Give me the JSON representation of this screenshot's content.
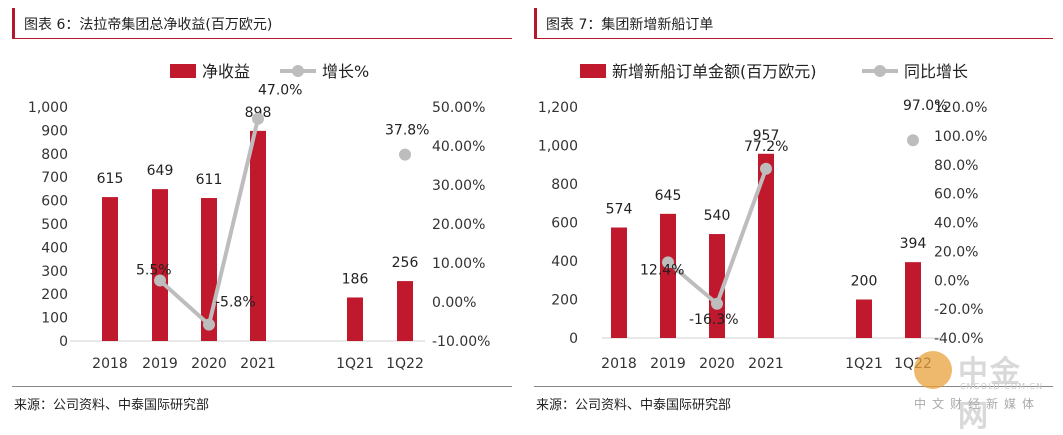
{
  "charts": [
    {
      "title": "图表 6：法拉帝集团总净收益(百万欧元)",
      "source": "来源：公司资料、中泰国际研究部",
      "legend": {
        "bar_label": "净收益",
        "line_label": "增长%"
      },
      "left_axis_ticks": [
        "0",
        "100",
        "200",
        "300",
        "400",
        "500",
        "600",
        "700",
        "800",
        "900",
        "1,000"
      ],
      "right_axis_ticks": [
        "-10.00%",
        "0.00%",
        "10.00%",
        "20.00%",
        "30.00%",
        "40.00%",
        "50.00%"
      ],
      "categories": [
        "2018",
        "2019",
        "2020",
        "2021",
        "1Q21",
        "1Q22"
      ],
      "bar_labels": [
        "615",
        "649",
        "611",
        "898",
        "186",
        "256"
      ],
      "line_labels": [
        "5.5%",
        "-5.8%",
        "47.0%",
        "37.8%"
      ]
    },
    {
      "title": "图表 7：集团新增新船订单",
      "source": "来源：公司资料、中泰国际研究部",
      "legend": {
        "bar_label": "新增新船订单金额(百万欧元)",
        "line_label": "同比增长"
      },
      "left_axis_ticks": [
        "0",
        "200",
        "400",
        "600",
        "800",
        "1,000",
        "1,200"
      ],
      "right_axis_ticks": [
        "-40.0%",
        "-20.0%",
        "0.0%",
        "20.0%",
        "40.0%",
        "60.0%",
        "80.0%",
        "100.0%",
        "120.0%"
      ],
      "categories": [
        "2018",
        "2019",
        "2020",
        "2021",
        "1Q21",
        "1Q22"
      ],
      "bar_labels": [
        "574",
        "645",
        "540",
        "957",
        "200",
        "394"
      ],
      "line_labels": [
        "12.4%",
        "-16.3%",
        "77.2%",
        "97.0%"
      ]
    }
  ],
  "chart_data": [
    {
      "type": "bar",
      "title": "图表 6：法拉帝集团总净收益(百万欧元)",
      "categories": [
        "2018",
        "2019",
        "2020",
        "2021",
        "1Q21",
        "1Q22"
      ],
      "series": [
        {
          "name": "净收益",
          "type": "bar",
          "axis": "left",
          "values": [
            615,
            649,
            611,
            898,
            186,
            256
          ]
        },
        {
          "name": "增长%",
          "type": "line",
          "axis": "right",
          "values": [
            null,
            5.5,
            -5.8,
            47.0,
            null,
            37.8
          ]
        }
      ],
      "ylim_left": [
        0,
        1000
      ],
      "ylim_right": [
        -10,
        50
      ],
      "legend": "top",
      "grid": false,
      "colors": {
        "bar": "#c0182c",
        "line": "#bdbdbd"
      }
    },
    {
      "type": "bar",
      "title": "图表 7：集团新增新船订单",
      "categories": [
        "2018",
        "2019",
        "2020",
        "2021",
        "1Q21",
        "1Q22"
      ],
      "series": [
        {
          "name": "新增新船订单金额(百万欧元)",
          "type": "bar",
          "axis": "left",
          "values": [
            574,
            645,
            540,
            957,
            200,
            394
          ]
        },
        {
          "name": "同比增长",
          "type": "line",
          "axis": "right",
          "values": [
            null,
            12.4,
            -16.3,
            77.2,
            null,
            97.0
          ]
        }
      ],
      "ylim_left": [
        0,
        1200
      ],
      "ylim_right": [
        -40,
        120
      ],
      "legend": "top",
      "grid": false,
      "colors": {
        "bar": "#c0182c",
        "line": "#bdbdbd"
      }
    }
  ],
  "watermark": {
    "name": "中金网",
    "domain": "CNGOLD.COM.CN",
    "tagline": "中文财经新媒体"
  }
}
